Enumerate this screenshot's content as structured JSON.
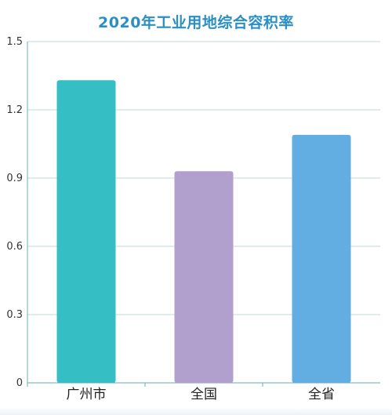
{
  "chart_data": {
    "type": "bar",
    "title": "2020年工业用地综合容积率",
    "xlabel": "",
    "ylabel": "",
    "categories": [
      "广州市",
      "全国",
      "全省"
    ],
    "values": [
      1.33,
      0.93,
      1.09
    ],
    "colors": [
      "#35bfc4",
      "#b19fcd",
      "#62aee2"
    ],
    "ylim": [
      0,
      1.5
    ],
    "yticks": [
      "0",
      "0.3",
      "0.6",
      "0.9",
      "1.2",
      "1.5"
    ],
    "ytick_values": [
      0,
      0.3,
      0.6,
      0.9,
      1.2,
      1.5
    ],
    "grid": true,
    "legend": "none"
  }
}
